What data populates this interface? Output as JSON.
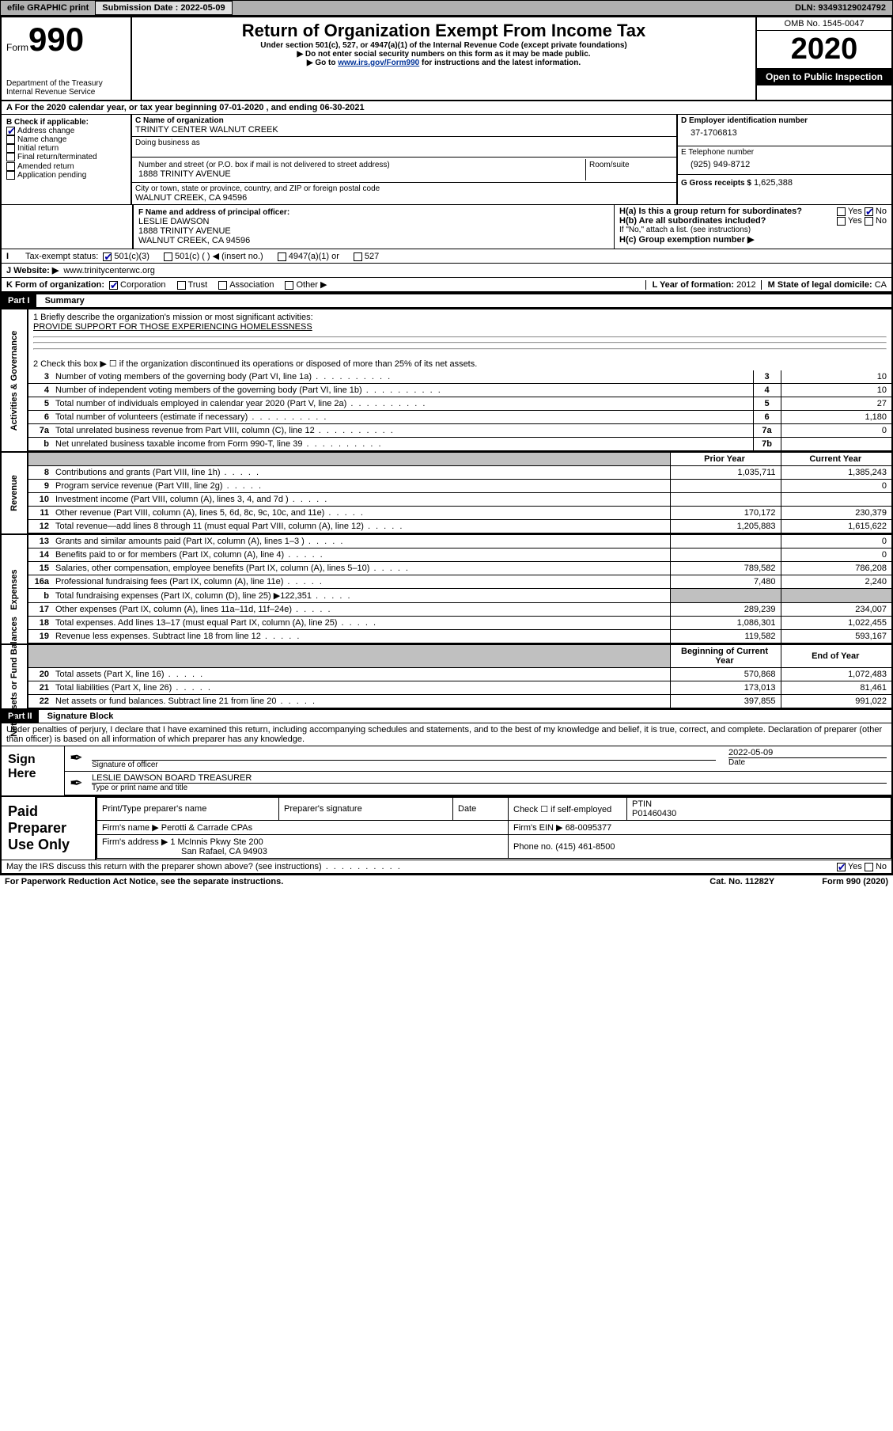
{
  "topbar": {
    "efile": "efile GRAPHIC print",
    "submission_label": "Submission Date : 2022-05-09",
    "dln": "DLN: 93493129024792"
  },
  "header": {
    "form_word": "Form",
    "form_no": "990",
    "dept": "Department of the Treasury",
    "irs": "Internal Revenue Service",
    "title": "Return of Organization Exempt From Income Tax",
    "subtitle": "Under section 501(c), 527, or 4947(a)(1) of the Internal Revenue Code (except private foundations)",
    "note1": "Do not enter social security numbers on this form as it may be made public.",
    "note2_pre": "Go to ",
    "note2_link": "www.irs.gov/Form990",
    "note2_post": " for instructions and the latest information.",
    "omb": "OMB No. 1545-0047",
    "year": "2020",
    "inspection": "Open to Public Inspection"
  },
  "a_line": "For the 2020 calendar year, or tax year beginning 07-01-2020   , and ending 06-30-2021",
  "b": {
    "label": "B Check if applicable:",
    "items": [
      {
        "label": "Address change",
        "checked": true
      },
      {
        "label": "Name change",
        "checked": false
      },
      {
        "label": "Initial return",
        "checked": false
      },
      {
        "label": "Final return/terminated",
        "checked": false
      },
      {
        "label": "Amended return",
        "checked": false
      },
      {
        "label": "Application pending",
        "checked": false
      }
    ]
  },
  "c": {
    "label": "C Name of organization",
    "name": "TRINITY CENTER WALNUT CREEK",
    "dba_label": "Doing business as",
    "street_label": "Number and street (or P.O. box if mail is not delivered to street address)",
    "room_label": "Room/suite",
    "street": "1888 TRINITY AVENUE",
    "city_label": "City or town, state or province, country, and ZIP or foreign postal code",
    "city": "WALNUT CREEK, CA  94596"
  },
  "d": {
    "label": "D Employer identification number",
    "value": "37-1706813"
  },
  "e": {
    "label": "E Telephone number",
    "value": "(925) 949-8712"
  },
  "g": {
    "label": "G Gross receipts $",
    "value": "1,625,388"
  },
  "f": {
    "label": "F  Name and address of principal officer:",
    "name": "LESLIE DAWSON",
    "street": "1888 TRINITY AVENUE",
    "city": "WALNUT CREEK, CA  94596"
  },
  "h": {
    "a": "H(a)  Is this a group return for subordinates?",
    "b": "H(b)  Are all subordinates included?",
    "b_note": "If \"No,\" attach a list. (see instructions)",
    "c": "H(c)  Group exemption number ▶",
    "yes": "Yes",
    "no": "No"
  },
  "i": {
    "label": "Tax-exempt status:",
    "opts": [
      "501(c)(3)",
      "501(c) (  ) ◀ (insert no.)",
      "4947(a)(1) or",
      "527"
    ],
    "checked_index": 0
  },
  "j": {
    "label": "J    Website: ▶",
    "value": "www.trinitycenterwc.org"
  },
  "k": {
    "label": "K Form of organization:",
    "opts": [
      "Corporation",
      "Trust",
      "Association",
      "Other ▶"
    ],
    "checked_index": 0
  },
  "l": {
    "label": "L Year of formation:",
    "value": "2012"
  },
  "m": {
    "label": "M State of legal domicile:",
    "value": "CA"
  },
  "part1": {
    "bar": "Part I",
    "title": "Summary"
  },
  "summary": {
    "q1_label": "1   Briefly describe the organization's mission or most significant activities:",
    "q1_value": "PROVIDE SUPPORT FOR THOSE EXPERIENCING HOMELESSNESS",
    "q2": "2    Check this box ▶ ☐  if the organization discontinued its operations or disposed of more than 25% of its net assets.",
    "lines_ag": [
      {
        "n": "3",
        "d": "Number of voting members of the governing body (Part VI, line 1a)",
        "box": "3",
        "v": "10"
      },
      {
        "n": "4",
        "d": "Number of independent voting members of the governing body (Part VI, line 1b)",
        "box": "4",
        "v": "10"
      },
      {
        "n": "5",
        "d": "Total number of individuals employed in calendar year 2020 (Part V, line 2a)",
        "box": "5",
        "v": "27"
      },
      {
        "n": "6",
        "d": "Total number of volunteers (estimate if necessary)",
        "box": "6",
        "v": "1,180"
      },
      {
        "n": "7a",
        "d": "Total unrelated business revenue from Part VIII, column (C), line 12",
        "box": "7a",
        "v": "0"
      },
      {
        "n": "b",
        "d": "Net unrelated business taxable income from Form 990-T, line 39",
        "box": "7b",
        "v": ""
      }
    ],
    "col_prior": "Prior Year",
    "col_current": "Current Year",
    "col_beg": "Beginning of Current Year",
    "col_end": "End of Year",
    "revenue": [
      {
        "n": "8",
        "d": "Contributions and grants (Part VIII, line 1h)",
        "p": "1,035,711",
        "c": "1,385,243"
      },
      {
        "n": "9",
        "d": "Program service revenue (Part VIII, line 2g)",
        "p": "",
        "c": "0"
      },
      {
        "n": "10",
        "d": "Investment income (Part VIII, column (A), lines 3, 4, and 7d )",
        "p": "",
        "c": ""
      },
      {
        "n": "11",
        "d": "Other revenue (Part VIII, column (A), lines 5, 6d, 8c, 9c, 10c, and 11e)",
        "p": "170,172",
        "c": "230,379"
      },
      {
        "n": "12",
        "d": "Total revenue—add lines 8 through 11 (must equal Part VIII, column (A), line 12)",
        "p": "1,205,883",
        "c": "1,615,622"
      }
    ],
    "expenses": [
      {
        "n": "13",
        "d": "Grants and similar amounts paid (Part IX, column (A), lines 1–3 )",
        "p": "",
        "c": "0"
      },
      {
        "n": "14",
        "d": "Benefits paid to or for members (Part IX, column (A), line 4)",
        "p": "",
        "c": "0"
      },
      {
        "n": "15",
        "d": "Salaries, other compensation, employee benefits (Part IX, column (A), lines 5–10)",
        "p": "789,582",
        "c": "786,208"
      },
      {
        "n": "16a",
        "d": "Professional fundraising fees (Part IX, column (A), line 11e)",
        "p": "7,480",
        "c": "2,240"
      },
      {
        "n": "b",
        "d": "Total fundraising expenses (Part IX, column (D), line 25) ▶122,351",
        "p": "GREY",
        "c": "GREY"
      },
      {
        "n": "17",
        "d": "Other expenses (Part IX, column (A), lines 11a–11d, 11f–24e)",
        "p": "289,239",
        "c": "234,007"
      },
      {
        "n": "18",
        "d": "Total expenses. Add lines 13–17 (must equal Part IX, column (A), line 25)",
        "p": "1,086,301",
        "c": "1,022,455"
      },
      {
        "n": "19",
        "d": "Revenue less expenses. Subtract line 18 from line 12",
        "p": "119,582",
        "c": "593,167"
      }
    ],
    "netassets": [
      {
        "n": "20",
        "d": "Total assets (Part X, line 16)",
        "p": "570,868",
        "c": "1,072,483"
      },
      {
        "n": "21",
        "d": "Total liabilities (Part X, line 26)",
        "p": "173,013",
        "c": "81,461"
      },
      {
        "n": "22",
        "d": "Net assets or fund balances. Subtract line 21 from line 20",
        "p": "397,855",
        "c": "991,022"
      }
    ],
    "vlabels": {
      "ag": "Activities & Governance",
      "rev": "Revenue",
      "exp": "Expenses",
      "na": "Net Assets or Fund Balances"
    }
  },
  "part2": {
    "bar": "Part II",
    "title": "Signature Block"
  },
  "declaration": "Under penalties of perjury, I declare that I have examined this return, including accompanying schedules and statements, and to the best of my knowledge and belief, it is true, correct, and complete. Declaration of preparer (other than officer) is based on all information of which preparer has any knowledge.",
  "sign": {
    "here": "Sign Here",
    "sig_label": "Signature of officer",
    "date_label": "Date",
    "date": "2022-05-09",
    "name": "LESLIE DAWSON  BOARD TREASURER",
    "name_label": "Type or print name and title"
  },
  "paid": {
    "label": "Paid Preparer Use Only",
    "h_name": "Print/Type preparer's name",
    "h_sig": "Preparer's signature",
    "h_date": "Date",
    "h_check": "Check ☐ if self-employed",
    "h_ptin": "PTIN",
    "ptin": "P01460430",
    "firm_name_l": "Firm's name    ▶",
    "firm_name": "Perotti & Carrade CPAs",
    "firm_ein_l": "Firm's EIN ▶",
    "firm_ein": "68-0095377",
    "firm_addr_l": "Firm's address ▶",
    "firm_addr1": "1 McInnis Pkwy Ste 200",
    "firm_addr2": "San Rafael, CA  94903",
    "phone_l": "Phone no.",
    "phone": "(415) 461-8500"
  },
  "discuss": {
    "q": "May the IRS discuss this return with the preparer shown above? (see instructions)",
    "yes": "Yes",
    "no": "No"
  },
  "footer": {
    "left": "For Paperwork Reduction Act Notice, see the separate instructions.",
    "mid": "Cat. No. 11282Y",
    "right": "Form 990 (2020)"
  }
}
